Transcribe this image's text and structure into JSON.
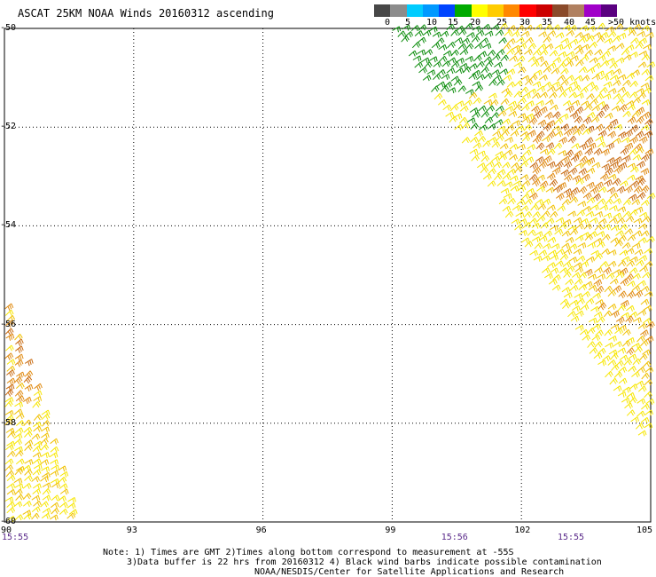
{
  "title": "ASCAT 25KM NOAA Winds 20160312 ascending",
  "colorbar": {
    "colors": [
      "#474747",
      "#8c8c8c",
      "#00ccff",
      "#0099ff",
      "#0044ff",
      "#00aa00",
      "#ffff00",
      "#ffcc00",
      "#ff8800",
      "#ff0000",
      "#cc0000",
      "#8a4a2a",
      "#b08060",
      "#a000c8",
      "#5a0080"
    ],
    "labels": [
      "0",
      "5",
      "10",
      "15",
      "20",
      "25",
      "30",
      "35",
      "40",
      "45",
      ">50 knots"
    ]
  },
  "map": {
    "lon_min": 90,
    "lon_max": 105,
    "lat_min": -60,
    "lat_max": -50,
    "lon_ticks": [
      "90",
      "93",
      "96",
      "99",
      "102",
      "105"
    ],
    "lat_ticks": [
      "-50",
      "-52",
      "-54",
      "-56",
      "-58",
      "-60"
    ],
    "grid": true
  },
  "times": [
    {
      "lon": 90,
      "label": "15:55"
    },
    {
      "lon": 100.2,
      "label": "15:56"
    },
    {
      "lon": 102.9,
      "label": "15:55"
    }
  ],
  "notes": [
    "Note: 1) Times are GMT 2)Times along bottom correspond to measurement at -55S",
    "3)Data buffer is 22 hrs from 20160312 4) Black wind barbs indicate possible contamination",
    "NOAA/NESDIS/Center for Satellite Applications and Research"
  ],
  "swaths": [
    {
      "name": "east-swath",
      "speed_regions": [
        "green 15-20 near -50 to -51",
        "yellow 20-25",
        "orange 25-30"
      ]
    },
    {
      "name": "west-swath",
      "speed_regions": [
        "orange 25-30",
        "yellow 20-25"
      ]
    }
  ]
}
